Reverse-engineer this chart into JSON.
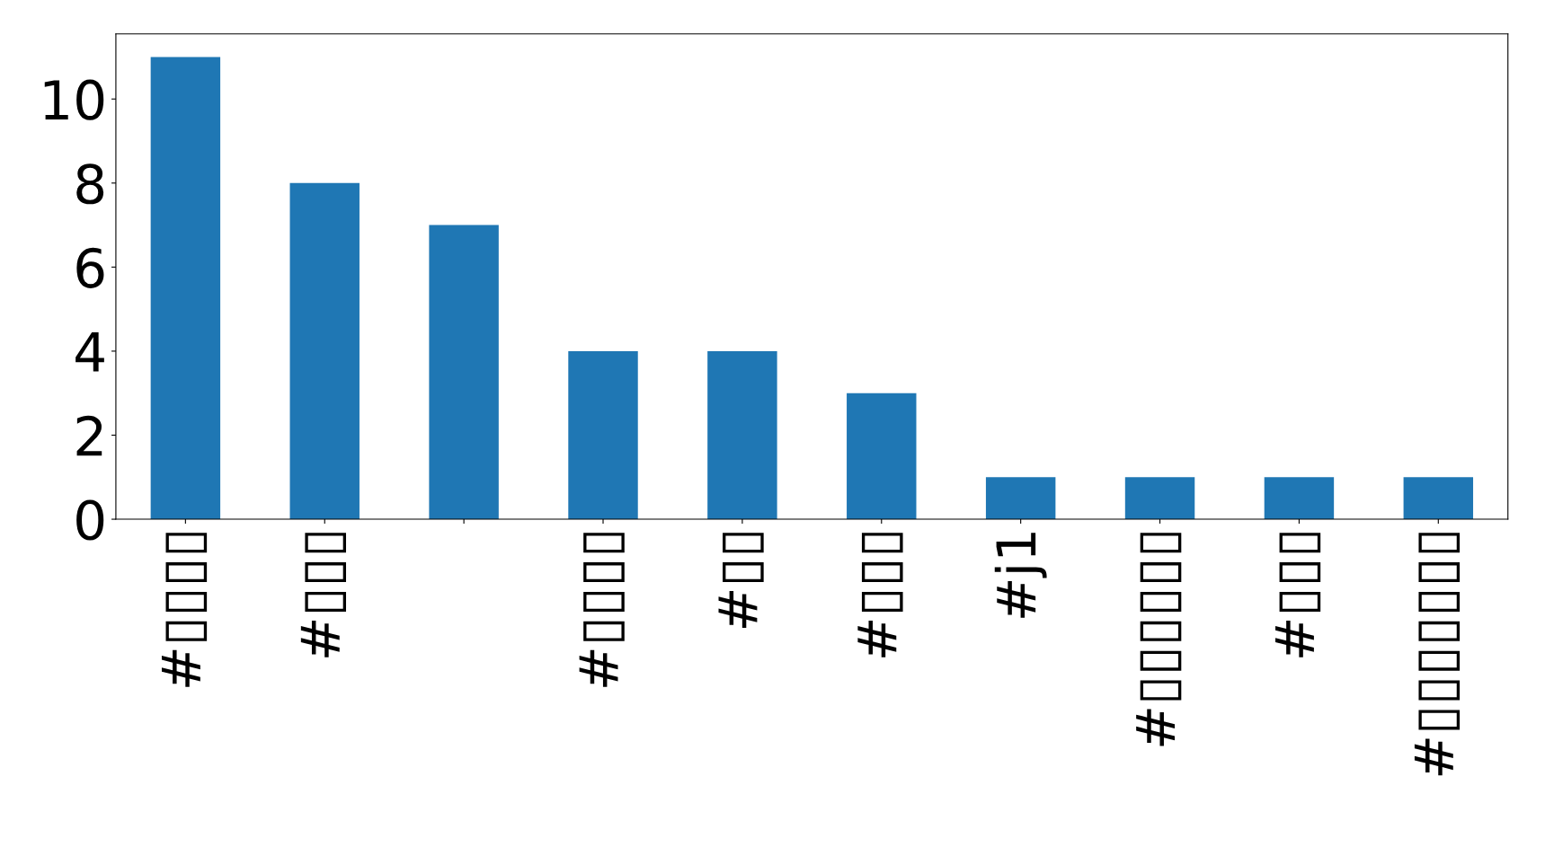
{
  "chart_data": {
    "type": "bar",
    "categories": [
      "#▯▯▯▯",
      "#▯▯▯",
      null,
      "#▯▯▯▯",
      "#▯▯",
      "#▯▯▯",
      "#j1",
      "#▯▯▯▯▯▯",
      "#▯▯▯",
      "#▯▯▯▯▯▯▯"
    ],
    "values": [
      11,
      8,
      7,
      4,
      4,
      3,
      1,
      1,
      1,
      1
    ],
    "color": "#1f77b4",
    "ylim": [
      0,
      11.55
    ],
    "yticks": [
      0,
      2,
      4,
      6,
      8,
      10
    ],
    "grid": false,
    "legend": false
  }
}
